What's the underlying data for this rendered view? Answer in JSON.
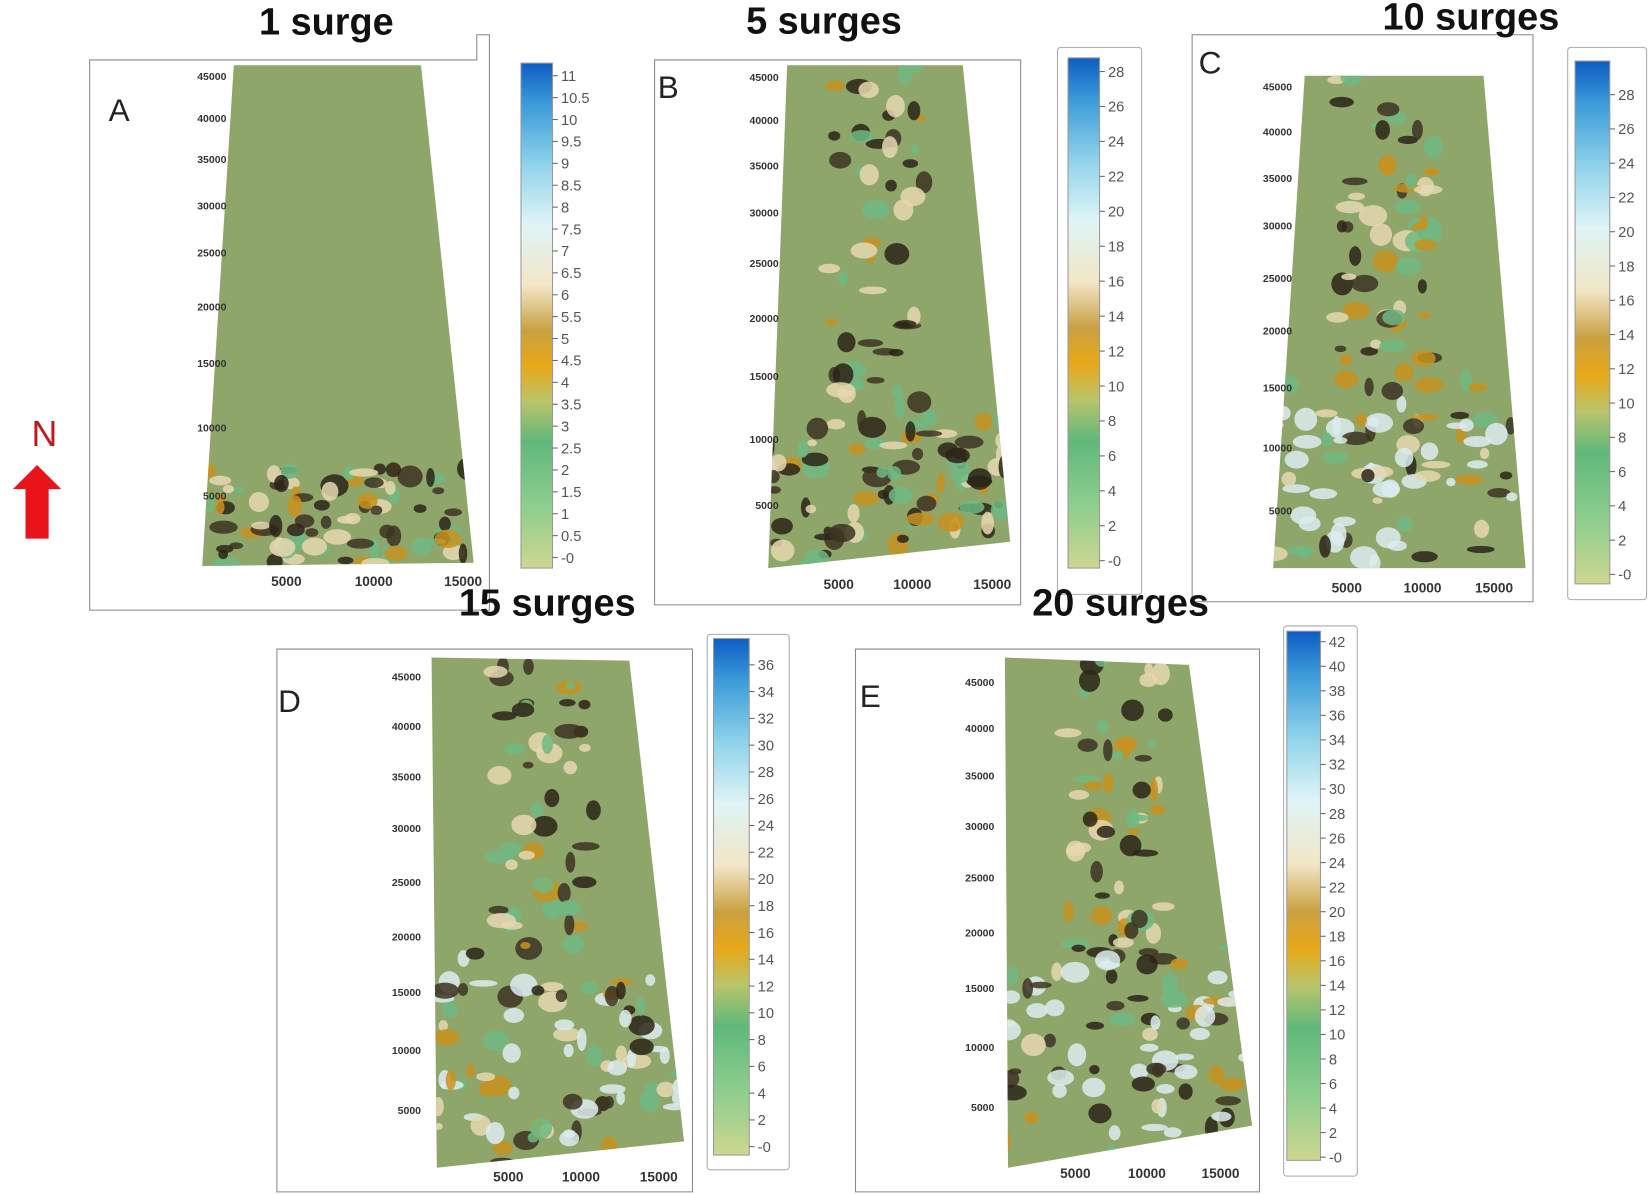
{
  "north_label": "N",
  "panels": [
    {
      "title": "1 surge",
      "letter": "A",
      "y_ticks": [
        "45000",
        "40000",
        "35000",
        "30000",
        "25000",
        "20000",
        "15000",
        "10000",
        "5000"
      ],
      "x_ticks": [
        "5000",
        "10000",
        "15000"
      ],
      "colorbar_ticks": [
        "11",
        "10.5",
        "10",
        "9.5",
        "9",
        "8.5",
        "8",
        "7.5",
        "7",
        "6.5",
        "6",
        "5.5",
        "5",
        "4.5",
        "4",
        "3.5",
        "3",
        "2.5",
        "2",
        "1.5",
        "1",
        "0.5",
        "-0"
      ]
    },
    {
      "title": "5 surges",
      "letter": "B",
      "y_ticks": [
        "45000",
        "40000",
        "35000",
        "30000",
        "25000",
        "20000",
        "15000",
        "10000",
        "5000"
      ],
      "x_ticks": [
        "5000",
        "10000",
        "15000"
      ],
      "colorbar_ticks": [
        "28",
        "26",
        "24",
        "22",
        "20",
        "18",
        "16",
        "14",
        "12",
        "10",
        "8",
        "6",
        "4",
        "2",
        "-0"
      ]
    },
    {
      "title": "10 surges",
      "letter": "C",
      "y_ticks": [
        "45000",
        "40000",
        "35000",
        "30000",
        "25000",
        "20000",
        "15000",
        "10000",
        "5000"
      ],
      "x_ticks": [
        "5000",
        "10000",
        "15000"
      ],
      "colorbar_ticks": [
        "28",
        "26",
        "24",
        "22",
        "20",
        "18",
        "16",
        "14",
        "12",
        "10",
        "8",
        "6",
        "4",
        "2",
        "-0"
      ]
    },
    {
      "title": "15 surges",
      "letter": "D",
      "y_ticks": [
        "45000",
        "40000",
        "35000",
        "30000",
        "25000",
        "20000",
        "15000",
        "10000",
        "5000"
      ],
      "x_ticks": [
        "5000",
        "10000",
        "15000"
      ],
      "colorbar_ticks": [
        "36",
        "34",
        "32",
        "30",
        "28",
        "26",
        "24",
        "22",
        "20",
        "18",
        "16",
        "14",
        "12",
        "10",
        "8",
        "6",
        "4",
        "2",
        "-0"
      ]
    },
    {
      "title": "20 surges",
      "letter": "E",
      "y_ticks": [
        "45000",
        "40000",
        "35000",
        "30000",
        "25000",
        "20000",
        "15000",
        "10000",
        "5000"
      ],
      "x_ticks": [
        "5000",
        "10000",
        "15000"
      ],
      "colorbar_ticks": [
        "42",
        "40",
        "38",
        "36",
        "34",
        "32",
        "30",
        "28",
        "26",
        "24",
        "22",
        "20",
        "18",
        "16",
        "14",
        "12",
        "10",
        "8",
        "6",
        "4",
        "2",
        "-0"
      ]
    }
  ]
}
